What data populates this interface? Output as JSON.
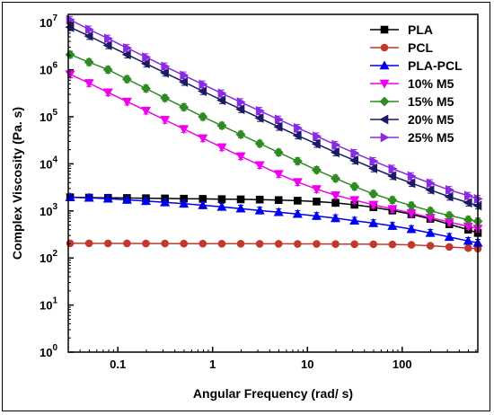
{
  "chart_data": {
    "type": "line",
    "xlabel": "Angular Frequency (rad/ s)",
    "ylabel": "Complex Viscosity (Pa. s)",
    "x_scale": "log",
    "y_scale": "log",
    "xlim": [
      0.03,
      628
    ],
    "ylim": [
      1,
      15000000
    ],
    "grid": false,
    "legend_position": "top-right",
    "x_ticks": [
      {
        "value": 0.1,
        "label": "0.1"
      },
      {
        "value": 1,
        "label": "1"
      },
      {
        "value": 10,
        "label": "10"
      },
      {
        "value": 100,
        "label": "100"
      }
    ],
    "y_ticks": [
      {
        "value": 1,
        "base": "10",
        "exp": "0"
      },
      {
        "value": 10,
        "base": "10",
        "exp": "1"
      },
      {
        "value": 100,
        "base": "10",
        "exp": "2"
      },
      {
        "value": 1000,
        "base": "10",
        "exp": "3"
      },
      {
        "value": 10000,
        "base": "10",
        "exp": "4"
      },
      {
        "value": 100000,
        "base": "10",
        "exp": "5"
      },
      {
        "value": 1000000,
        "base": "10",
        "exp": "6"
      },
      {
        "value": 10000000,
        "base": "10",
        "exp": "7"
      }
    ],
    "x": [
      0.0314,
      0.0497,
      0.0788,
      0.125,
      0.198,
      0.314,
      0.497,
      0.788,
      1.25,
      1.98,
      3.14,
      4.97,
      7.88,
      12.5,
      19.8,
      31.4,
      49.7,
      78.8,
      125,
      198,
      314,
      497,
      628
    ],
    "series": [
      {
        "name": "PLA",
        "color": "#000000",
        "marker": "square",
        "values": [
          1950,
          1920,
          1900,
          1880,
          1860,
          1840,
          1820,
          1800,
          1780,
          1760,
          1740,
          1700,
          1650,
          1580,
          1480,
          1350,
          1200,
          1020,
          850,
          680,
          520,
          400,
          340
        ]
      },
      {
        "name": "PCL",
        "color": "#c0392b",
        "marker": "circle",
        "values": [
          205,
          205,
          204,
          204,
          203,
          203,
          202,
          202,
          201,
          201,
          200,
          200,
          199,
          199,
          198,
          197,
          196,
          194,
          190,
          182,
          172,
          162,
          158
        ]
      },
      {
        "name": "PLA-PCL",
        "color": "#0000ee",
        "marker": "triangle-up",
        "values": [
          1950,
          1900,
          1820,
          1720,
          1620,
          1520,
          1420,
          1320,
          1220,
          1120,
          1020,
          940,
          860,
          780,
          700,
          620,
          550,
          480,
          410,
          340,
          280,
          230,
          210
        ]
      },
      {
        "name": "10% M5",
        "color": "#ee00ee",
        "marker": "triangle-down",
        "values": [
          800000,
          520000,
          330000,
          210000,
          135000,
          86000,
          55000,
          35000,
          22500,
          14500,
          9400,
          6100,
          4100,
          2900,
          2150,
          1700,
          1350,
          1100,
          900,
          720,
          580,
          470,
          420
        ]
      },
      {
        "name": "15% M5",
        "color": "#2e8b22",
        "marker": "diamond",
        "values": [
          2100000,
          1450000,
          1000000,
          630000,
          400000,
          250000,
          160000,
          100000,
          65000,
          42000,
          27000,
          17500,
          11400,
          7400,
          4900,
          3300,
          2300,
          1700,
          1300,
          1000,
          800,
          650,
          600
        ]
      },
      {
        "name": "20% M5",
        "color": "#1a1a66",
        "marker": "triangle-left",
        "values": [
          8000000,
          5200000,
          3300000,
          2100000,
          1350000,
          860000,
          550000,
          350000,
          225000,
          145000,
          94000,
          61000,
          40000,
          26500,
          17500,
          11800,
          8000,
          5500,
          3900,
          2800,
          2000,
          1500,
          1300
        ]
      },
      {
        "name": "25% M5",
        "color": "#8a2be2",
        "marker": "triangle-right",
        "values": [
          11500000,
          7200000,
          4600000,
          2900000,
          1850000,
          1180000,
          760000,
          490000,
          315000,
          205000,
          134000,
          88000,
          58000,
          38500,
          25500,
          17000,
          11500,
          7900,
          5500,
          3900,
          2800,
          2100,
          1800
        ]
      }
    ]
  }
}
